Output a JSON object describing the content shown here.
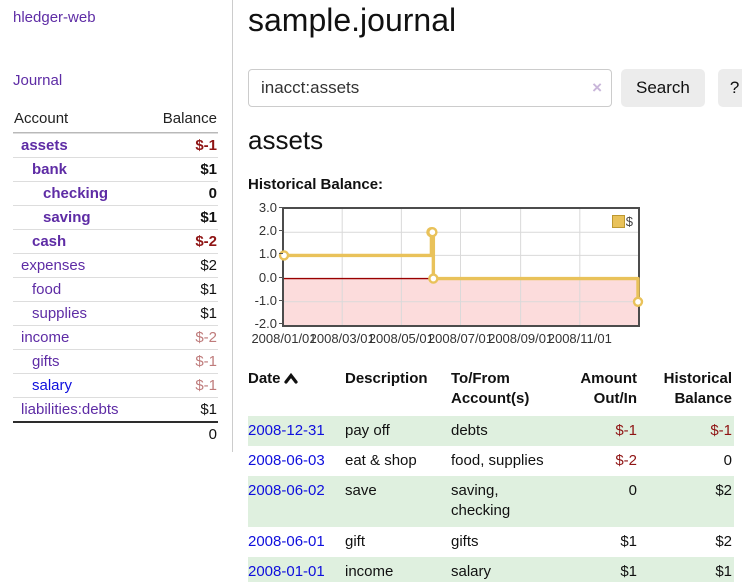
{
  "app": {
    "title": "hledger-web"
  },
  "sidebar": {
    "journal_link": "Journal",
    "header": {
      "account": "Account",
      "balance": "Balance"
    },
    "accounts": [
      {
        "name": "assets",
        "balance": "$-1"
      },
      {
        "name": "bank",
        "balance": "$1"
      },
      {
        "name": "checking",
        "balance": "0"
      },
      {
        "name": "saving",
        "balance": "$1"
      },
      {
        "name": "cash",
        "balance": "$-2"
      },
      {
        "name": "expenses",
        "balance": "$2"
      },
      {
        "name": "food",
        "balance": "$1"
      },
      {
        "name": "supplies",
        "balance": "$1"
      },
      {
        "name": "income",
        "balance": "$-2"
      },
      {
        "name": "gifts",
        "balance": "$-1"
      },
      {
        "name": "salary",
        "balance": "$-1"
      },
      {
        "name": "liabilities:debts",
        "balance": "$1"
      }
    ],
    "total": "0"
  },
  "main": {
    "title": "sample.journal",
    "search": {
      "value": "inacct:assets",
      "clear_icon": "×",
      "button_label": "Search",
      "help_label": "?"
    },
    "account_heading": "assets",
    "chart_label": "Historical Balance:"
  },
  "chart_data": {
    "type": "line",
    "title": "Historical Balance",
    "step": true,
    "series": [
      {
        "name": "$",
        "color": "#e9c25a",
        "points": [
          {
            "x": "2008-01-01",
            "y": 1
          },
          {
            "x": "2008-06-01",
            "y": 2
          },
          {
            "x": "2008-06-02",
            "y": 2
          },
          {
            "x": "2008-06-03",
            "y": 0
          },
          {
            "x": "2008-12-31",
            "y": -1
          }
        ]
      }
    ],
    "x_range": [
      "2008-01-01",
      "2008-12-31"
    ],
    "ylim": [
      -2,
      3
    ],
    "yticks": [
      "3.0",
      "2.0",
      "1.0",
      "0.0",
      "-1.0",
      "-2.0"
    ],
    "xticks": [
      "2008/01/01",
      "2008/03/01",
      "2008/05/01",
      "2008/07/01",
      "2008/09/01",
      "2008/11/01"
    ],
    "legend_position": "top-right",
    "grid": true,
    "negative_region_color": "#fcdcdc",
    "zero_line_color": "#990000",
    "grid_color": "#d9d9d9"
  },
  "register": {
    "columns": [
      {
        "l1": "Date",
        "l2": ""
      },
      {
        "l1": "Description",
        "l2": ""
      },
      {
        "l1": "To/From",
        "l2": "Account(s)"
      },
      {
        "l1": "Amount",
        "l2": "Out/In"
      },
      {
        "l1": "Historical",
        "l2": "Balance"
      }
    ],
    "rows": [
      {
        "date": "2008-12-31",
        "description": "pay off",
        "accounts": "debts",
        "amount": "$-1",
        "balance": "$-1"
      },
      {
        "date": "2008-06-03",
        "description": "eat & shop",
        "accounts": "food, supplies",
        "amount": "$-2",
        "balance": "0"
      },
      {
        "date": "2008-06-02",
        "description": "save",
        "accounts": "saving, checking",
        "amount": "0",
        "balance": "$2"
      },
      {
        "date": "2008-06-01",
        "description": "gift",
        "accounts": "gifts",
        "amount": "$1",
        "balance": "$2"
      },
      {
        "date": "2008-01-01",
        "description": "income",
        "accounts": "salary",
        "amount": "$1",
        "balance": "$1"
      }
    ]
  }
}
